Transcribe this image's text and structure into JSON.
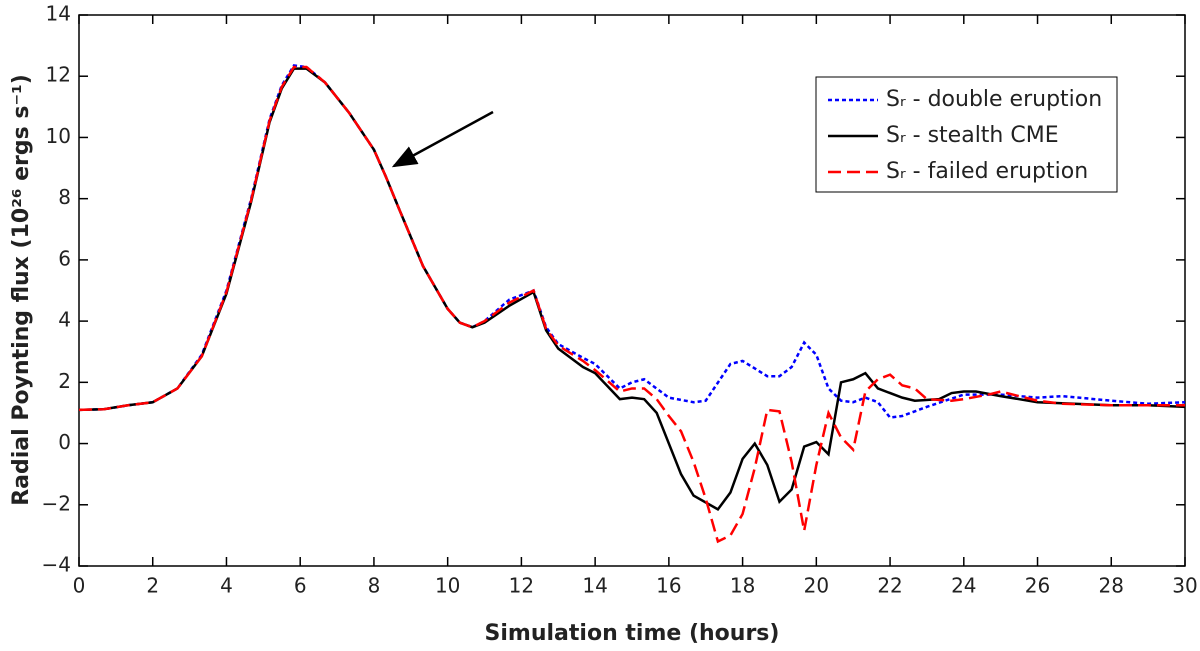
{
  "chart_data": {
    "type": "line",
    "xlabel": "Simulation time (hours)",
    "ylabel": "Radial Poynting flux (10²⁶ ergs s⁻¹)",
    "xlim": [
      0,
      30
    ],
    "ylim": [
      -4,
      14
    ],
    "xticks": [
      0,
      2,
      4,
      6,
      8,
      10,
      12,
      14,
      16,
      18,
      20,
      22,
      24,
      26,
      28,
      30
    ],
    "yticks": [
      {
        "value": -4,
        "label": "−4"
      },
      {
        "value": -2,
        "label": "−2"
      },
      0,
      2,
      4,
      6,
      8,
      10,
      12,
      14
    ],
    "legend": "upper right",
    "series": [
      {
        "name": "Sᵣ - double eruption",
        "color": "#0000ff",
        "linestyle": "dotted",
        "x": [
          0,
          0.67,
          1.33,
          2,
          2.67,
          3.33,
          4,
          4.67,
          5.17,
          5.5,
          5.83,
          6.17,
          6.67,
          7.33,
          8,
          8.33,
          8.67,
          9.33,
          10,
          10.33,
          10.67,
          11,
          11.67,
          12.33,
          12.67,
          13,
          13.67,
          14,
          14.67,
          15,
          15.33,
          16,
          16.67,
          17,
          17.67,
          18,
          18.67,
          19,
          19.33,
          19.67,
          20,
          20.33,
          20.67,
          21,
          21.33,
          21.67,
          22,
          22.33,
          23,
          24,
          25,
          26,
          26.67,
          28,
          29,
          30
        ],
        "values": [
          1.1,
          1.12,
          1.25,
          1.35,
          1.8,
          2.9,
          5.0,
          8.0,
          10.6,
          11.7,
          12.35,
          12.3,
          11.8,
          10.8,
          9.6,
          8.7,
          7.7,
          5.8,
          4.4,
          3.95,
          3.8,
          4.0,
          4.7,
          5.0,
          3.8,
          3.25,
          2.8,
          2.6,
          1.8,
          2.0,
          2.1,
          1.5,
          1.35,
          1.4,
          2.6,
          2.7,
          2.2,
          2.2,
          2.5,
          3.3,
          2.9,
          1.8,
          1.4,
          1.35,
          1.5,
          1.35,
          0.85,
          0.9,
          1.2,
          1.6,
          1.6,
          1.5,
          1.55,
          1.4,
          1.3,
          1.35
        ]
      },
      {
        "name": "Sᵣ - stealth CME",
        "color": "#000000",
        "linestyle": "solid",
        "x": [
          0,
          0.67,
          1.33,
          2,
          2.67,
          3.33,
          4,
          4.67,
          5.17,
          5.5,
          5.83,
          6.17,
          6.67,
          7.33,
          8,
          8.33,
          8.67,
          9.33,
          10,
          10.33,
          10.67,
          11,
          11.67,
          12.33,
          12.67,
          13,
          13.67,
          14,
          14.67,
          15,
          15.33,
          15.67,
          16.33,
          16.67,
          17.33,
          17.67,
          18,
          18.33,
          18.67,
          19,
          19.33,
          19.67,
          20,
          20.33,
          20.67,
          21,
          21.33,
          21.67,
          22.33,
          22.67,
          23.33,
          23.67,
          24,
          24.33,
          25,
          26,
          27,
          28,
          29,
          30
        ],
        "values": [
          1.1,
          1.12,
          1.25,
          1.35,
          1.8,
          2.85,
          4.9,
          7.9,
          10.5,
          11.6,
          12.25,
          12.25,
          11.8,
          10.8,
          9.6,
          8.7,
          7.7,
          5.8,
          4.4,
          3.95,
          3.8,
          3.95,
          4.5,
          4.95,
          3.7,
          3.1,
          2.5,
          2.3,
          1.45,
          1.5,
          1.45,
          1.0,
          -1.0,
          -1.7,
          -2.15,
          -1.6,
          -0.5,
          0,
          -0.7,
          -1.9,
          -1.5,
          -0.1,
          0.05,
          -0.35,
          2.0,
          2.1,
          2.3,
          1.8,
          1.5,
          1.4,
          1.45,
          1.65,
          1.7,
          1.7,
          1.55,
          1.35,
          1.3,
          1.25,
          1.25,
          1.2
        ]
      },
      {
        "name": "Sᵣ - failed eruption",
        "color": "#ff0000",
        "linestyle": "dashed",
        "x": [
          0,
          0.67,
          1.33,
          2,
          2.67,
          3.33,
          4,
          4.67,
          5.17,
          5.5,
          5.83,
          6.17,
          6.67,
          7.33,
          8,
          8.33,
          8.67,
          9.33,
          10,
          10.33,
          10.67,
          11,
          11.67,
          12.33,
          12.67,
          13,
          13.67,
          14,
          14.67,
          15,
          15.33,
          15.67,
          16,
          16.33,
          16.67,
          17,
          17.33,
          17.67,
          18,
          18.33,
          18.67,
          19,
          19.33,
          19.67,
          20,
          20.33,
          20.67,
          21,
          21.33,
          21.67,
          22,
          22.33,
          22.67,
          23,
          23.67,
          24,
          24.67,
          25,
          25.33,
          26,
          26.67,
          28,
          29,
          30
        ],
        "values": [
          1.1,
          1.12,
          1.25,
          1.35,
          1.8,
          2.85,
          4.95,
          7.95,
          10.55,
          11.65,
          12.3,
          12.3,
          11.8,
          10.8,
          9.6,
          8.7,
          7.7,
          5.8,
          4.4,
          3.95,
          3.8,
          4.0,
          4.6,
          5.0,
          3.75,
          3.2,
          2.7,
          2.4,
          1.7,
          1.8,
          1.8,
          1.45,
          0.9,
          0.4,
          -0.6,
          -1.8,
          -3.2,
          -3.0,
          -2.3,
          -0.8,
          1.1,
          1.05,
          -0.6,
          -2.85,
          -0.7,
          1.0,
          0.2,
          -0.2,
          1.7,
          2.1,
          2.25,
          1.9,
          1.8,
          1.45,
          1.4,
          1.45,
          1.6,
          1.7,
          1.6,
          1.4,
          1.3,
          1.25,
          1.25,
          1.25
        ]
      }
    ]
  }
}
